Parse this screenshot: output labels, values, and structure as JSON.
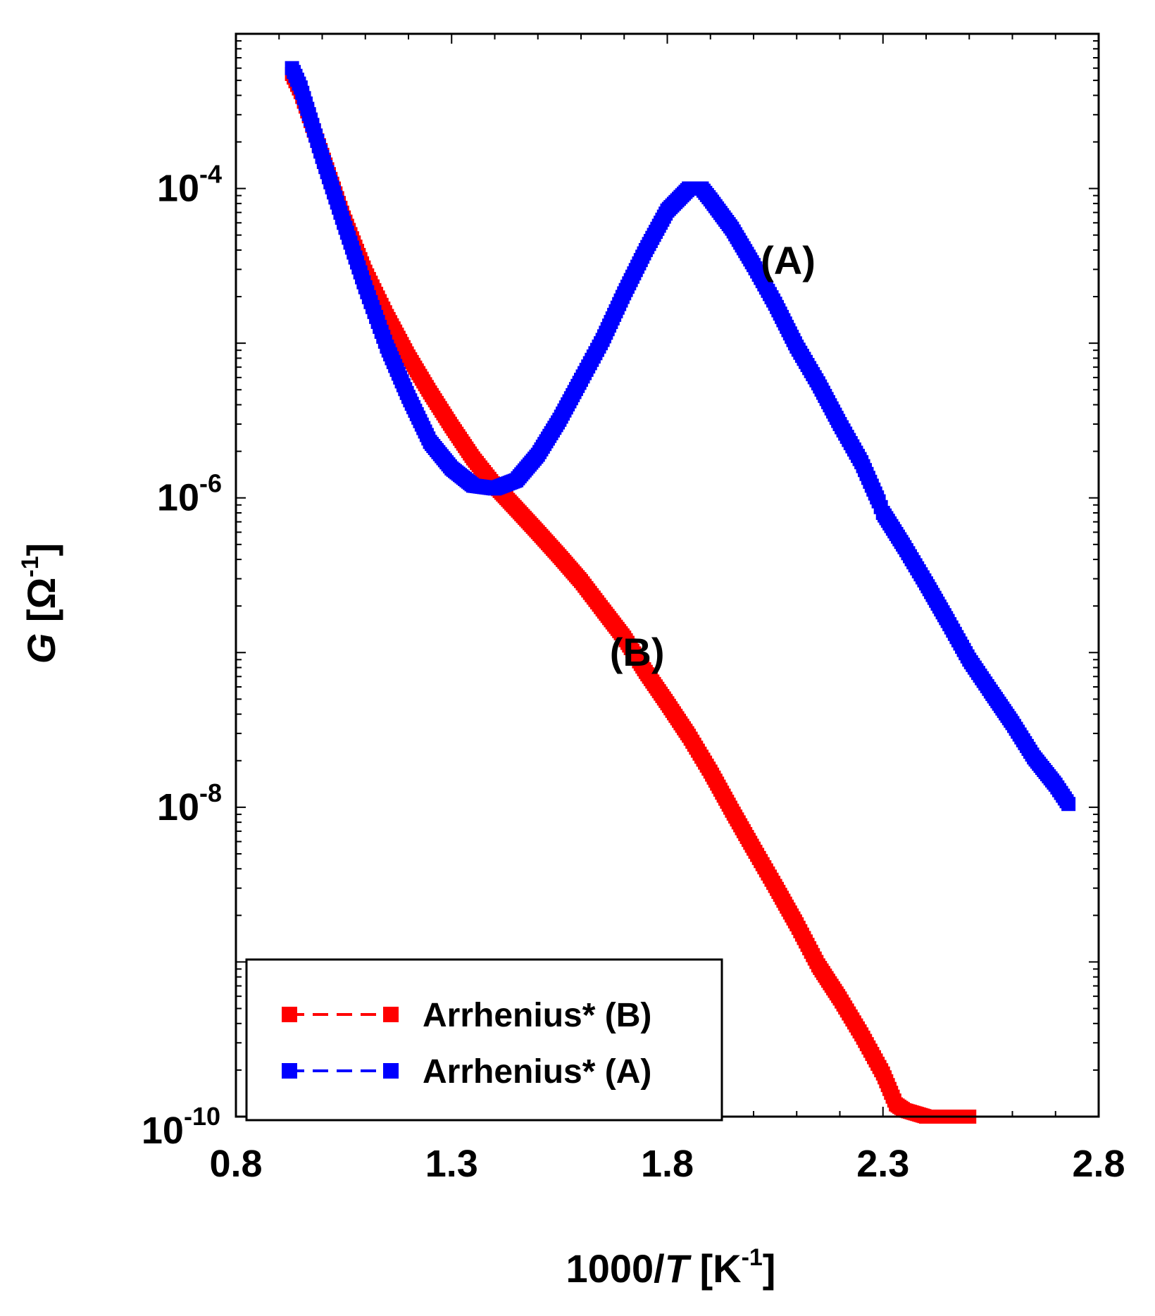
{
  "chart_data": {
    "type": "scatter",
    "title": "",
    "xlabel": "1000/T [K⁻¹]",
    "xlabel_parts": {
      "prefix": "1000/",
      "var": "T",
      "unit_open": " [K",
      "unit_sup": "-1",
      "unit_close": "]"
    },
    "ylabel": "G [Ω⁻¹]",
    "ylabel_parts": {
      "var": "G",
      "unit_open": " [Ω",
      "unit_sup": "-1",
      "unit_close": "]"
    },
    "x_scale": "linear",
    "y_scale": "log",
    "xlim": [
      0.8,
      2.8
    ],
    "ylim": [
      1e-10,
      0.001
    ],
    "x_ticks": [
      0.8,
      1.3,
      1.8,
      2.3,
      2.8
    ],
    "x_tick_labels": [
      "0.8",
      "1.3",
      "1.8",
      "2.3",
      "2.8"
    ],
    "y_ticks": [
      1e-10,
      1e-08,
      1e-06,
      0.0001
    ],
    "y_tick_labels": [
      {
        "base": "10",
        "exp": "-10"
      },
      {
        "base": "10",
        "exp": "-8"
      },
      {
        "base": "10",
        "exp": "-6"
      },
      {
        "base": "10",
        "exp": "-4"
      }
    ],
    "grid": false,
    "legend_position": "bottom-left",
    "series": [
      {
        "name": "Arrhenius* (B)",
        "color": "#ff0000",
        "marker": "square",
        "line_style": "dashed",
        "key_points": [
          [
            0.93,
            0.00055
          ],
          [
            0.95,
            0.00042
          ],
          [
            1.0,
            0.000165
          ],
          [
            1.05,
            6.5e-05
          ],
          [
            1.1,
            2.9e-05
          ],
          [
            1.15,
            1.5e-05
          ],
          [
            1.2,
            8.2e-06
          ],
          [
            1.25,
            4.8e-06
          ],
          [
            1.3,
            2.9e-06
          ],
          [
            1.35,
            1.8e-06
          ],
          [
            1.4,
            1.2e-06
          ],
          [
            1.45,
            8.5e-07
          ],
          [
            1.5,
            6e-07
          ],
          [
            1.55,
            4.2e-07
          ],
          [
            1.6,
            2.9e-07
          ],
          [
            1.65,
            1.9e-07
          ],
          [
            1.7,
            1.25e-07
          ],
          [
            1.75,
            7.5e-08
          ],
          [
            1.8,
            4.7e-08
          ],
          [
            1.85,
            2.9e-08
          ],
          [
            1.9,
            1.7e-08
          ],
          [
            1.95,
            9.5e-09
          ],
          [
            2.0,
            5.4e-09
          ],
          [
            2.05,
            3.1e-09
          ],
          [
            2.1,
            1.75e-09
          ],
          [
            2.15,
            9.5e-10
          ],
          [
            2.2,
            5.8e-10
          ],
          [
            2.25,
            3.4e-10
          ],
          [
            2.3,
            1.9e-10
          ],
          [
            2.33,
            1.2e-10
          ],
          [
            2.35,
            1.1e-10
          ],
          [
            2.4,
            1e-10
          ],
          [
            2.5,
            1e-10
          ]
        ]
      },
      {
        "name": "Arrhenius* (A)",
        "color": "#0000ff",
        "marker": "square",
        "line_style": "dashed",
        "key_points": [
          [
            0.93,
            0.0006
          ],
          [
            0.95,
            0.00045
          ],
          [
            1.0,
            0.00016
          ],
          [
            1.05,
            6e-05
          ],
          [
            1.1,
            2.3e-05
          ],
          [
            1.15,
            9.5e-06
          ],
          [
            1.2,
            4.5e-06
          ],
          [
            1.25,
            2.3e-06
          ],
          [
            1.3,
            1.55e-06
          ],
          [
            1.35,
            1.2e-06
          ],
          [
            1.4,
            1.15e-06
          ],
          [
            1.45,
            1.3e-06
          ],
          [
            1.5,
            1.9e-06
          ],
          [
            1.55,
            3.2e-06
          ],
          [
            1.6,
            5.8e-06
          ],
          [
            1.65,
            1.05e-05
          ],
          [
            1.7,
            2.1e-05
          ],
          [
            1.75,
            4e-05
          ],
          [
            1.8,
            7.2e-05
          ],
          [
            1.85,
            0.0001
          ],
          [
            1.88,
            0.0001
          ],
          [
            1.9,
            8.5e-05
          ],
          [
            1.95,
            5.5e-05
          ],
          [
            2.0,
            3.2e-05
          ],
          [
            2.05,
            1.8e-05
          ],
          [
            2.1,
            9.5e-06
          ],
          [
            2.15,
            5.5e-06
          ],
          [
            2.2,
            3e-06
          ],
          [
            2.25,
            1.7e-06
          ],
          [
            2.29,
            9.5e-07
          ],
          [
            2.3,
            8e-07
          ],
          [
            2.35,
            4.8e-07
          ],
          [
            2.4,
            2.8e-07
          ],
          [
            2.45,
            1.6e-07
          ],
          [
            2.5,
            9e-08
          ],
          [
            2.55,
            5.6e-08
          ],
          [
            2.6,
            3.5e-08
          ],
          [
            2.65,
            2.1e-08
          ],
          [
            2.7,
            1.4e-08
          ],
          [
            2.73,
            1.05e-08
          ]
        ]
      }
    ],
    "annotations": [
      {
        "text": "(A)",
        "x": 2.08,
        "y": 2.8e-05,
        "series": "Arrhenius* (A)"
      },
      {
        "text": "(B)",
        "x": 1.73,
        "y": 8.2e-08,
        "series": "Arrhenius* (B)"
      }
    ]
  }
}
